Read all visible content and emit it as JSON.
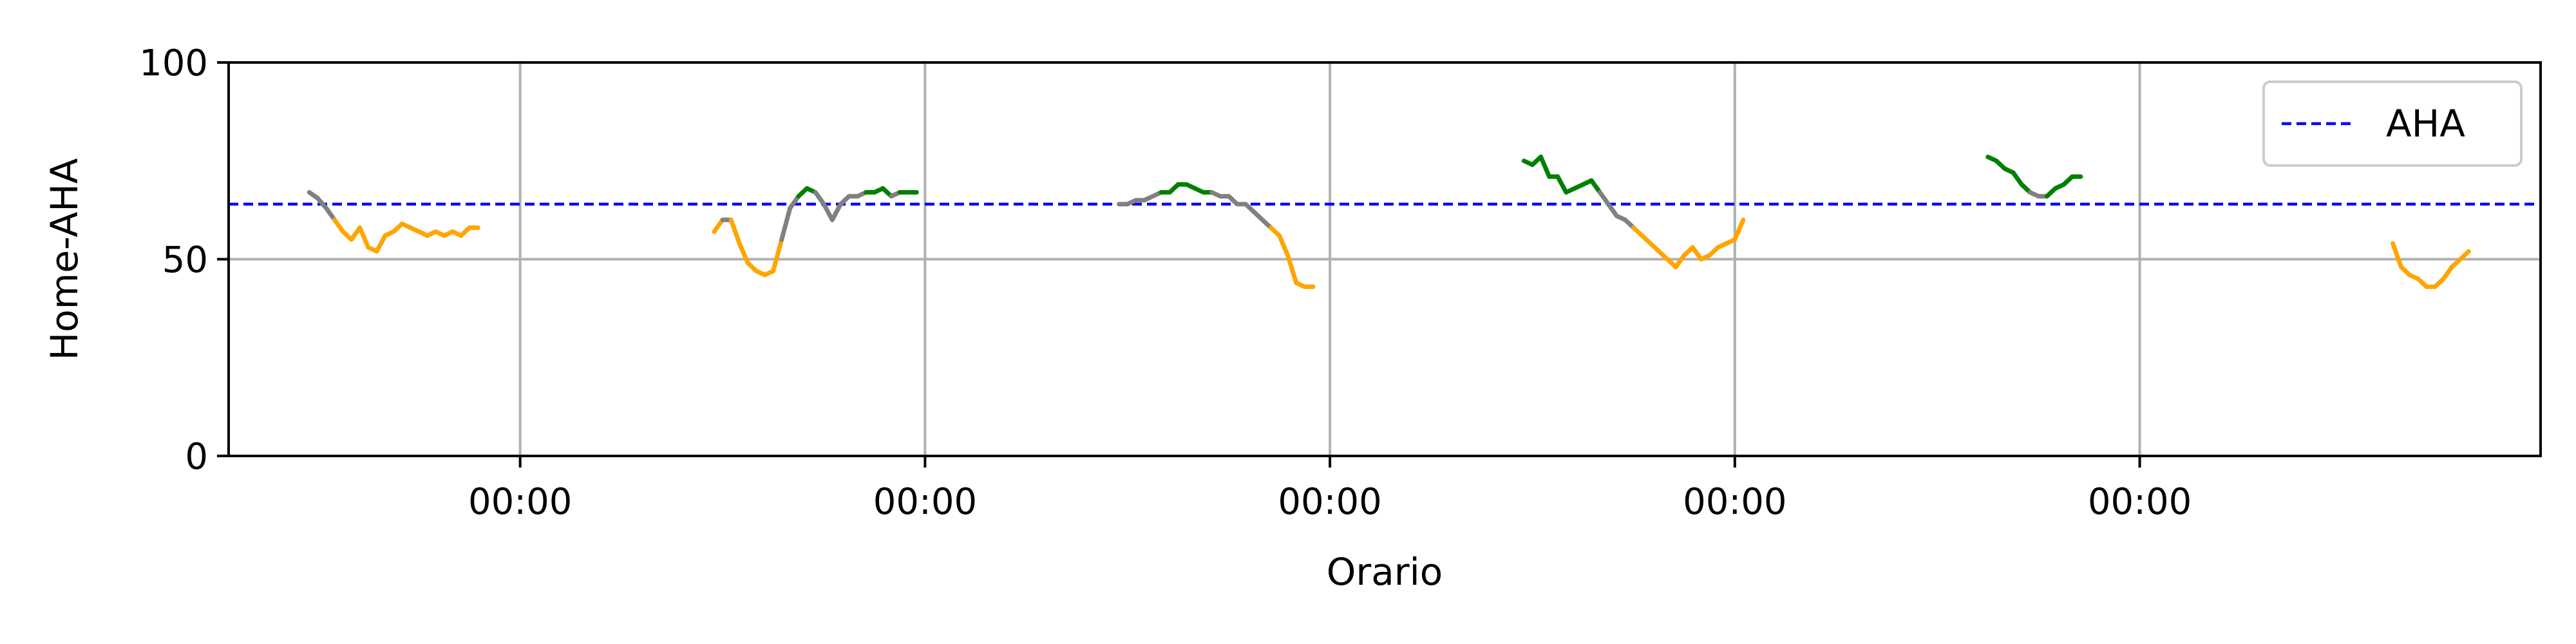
{
  "chart_data": {
    "type": "line",
    "title": "",
    "xlabel": "Orario",
    "ylabel": "Home-AHA",
    "ylim": [
      0,
      100
    ],
    "yticks": [
      0,
      50,
      100
    ],
    "xticks": [
      "00:00",
      "00:00",
      "00:00",
      "00:00",
      "00:00"
    ],
    "xlim_days": [
      -0.72,
      4.99
    ],
    "grid": true,
    "legend": {
      "placement": "top-right",
      "entries": [
        "AHA"
      ]
    },
    "reference_line": {
      "name": "AHA",
      "value": 64,
      "color": "#0000ff",
      "style": "dashed"
    },
    "series_colors": {
      "below": "#ffa500",
      "near": "#808080",
      "above": "#008000"
    },
    "days": [
      {
        "start_hour": 11.5,
        "end_hour": 21.5,
        "points": [
          [
            11.5,
            67
          ],
          [
            12.0,
            65.5
          ],
          [
            12.5,
            63
          ],
          [
            13.0,
            60
          ],
          [
            13.5,
            57
          ],
          [
            14.0,
            55
          ],
          [
            14.5,
            58
          ],
          [
            15.0,
            53
          ],
          [
            15.5,
            52
          ],
          [
            16.0,
            56
          ],
          [
            16.5,
            57
          ],
          [
            17.0,
            59
          ],
          [
            17.5,
            58
          ],
          [
            18.0,
            57
          ],
          [
            18.5,
            56
          ],
          [
            19.0,
            57
          ],
          [
            19.5,
            56
          ],
          [
            20.0,
            57
          ],
          [
            20.5,
            56
          ],
          [
            21.0,
            58
          ],
          [
            21.5,
            58
          ]
        ]
      },
      {
        "start_hour": 11.5,
        "end_hour": 23.5,
        "points": [
          [
            11.5,
            57
          ],
          [
            12.0,
            60
          ],
          [
            12.5,
            60
          ],
          [
            13.0,
            54
          ],
          [
            13.5,
            49
          ],
          [
            14.0,
            47
          ],
          [
            14.5,
            46
          ],
          [
            15.0,
            47
          ],
          [
            15.5,
            55
          ],
          [
            16.0,
            63
          ],
          [
            16.5,
            66
          ],
          [
            17.0,
            68
          ],
          [
            17.5,
            67
          ],
          [
            18.0,
            64
          ],
          [
            18.5,
            60
          ],
          [
            19.0,
            64
          ],
          [
            19.5,
            66
          ],
          [
            20.0,
            66
          ],
          [
            20.5,
            67
          ],
          [
            21.0,
            67
          ],
          [
            21.5,
            68
          ],
          [
            22.0,
            66
          ],
          [
            22.5,
            67
          ],
          [
            23.0,
            67
          ],
          [
            23.5,
            67
          ]
        ]
      },
      {
        "start_hour": 11.5,
        "end_hour": 23.0,
        "points": [
          [
            11.5,
            64
          ],
          [
            12.0,
            64
          ],
          [
            12.5,
            65
          ],
          [
            13.0,
            65
          ],
          [
            13.5,
            66
          ],
          [
            14.0,
            67
          ],
          [
            14.5,
            67
          ],
          [
            15.0,
            69
          ],
          [
            15.5,
            69
          ],
          [
            16.0,
            68
          ],
          [
            16.5,
            67
          ],
          [
            17.0,
            67
          ],
          [
            17.5,
            66
          ],
          [
            18.0,
            66
          ],
          [
            18.5,
            64
          ],
          [
            19.0,
            64
          ],
          [
            19.5,
            62
          ],
          [
            20.0,
            60
          ],
          [
            20.5,
            58
          ],
          [
            21.0,
            56
          ],
          [
            21.5,
            51
          ],
          [
            22.0,
            44
          ],
          [
            22.5,
            43
          ],
          [
            23.0,
            43
          ]
        ]
      },
      {
        "start_hour": 11.5,
        "end_hour": 24.5,
        "points": [
          [
            11.5,
            75
          ],
          [
            12.0,
            74
          ],
          [
            12.5,
            76
          ],
          [
            13.0,
            71
          ],
          [
            13.5,
            71
          ],
          [
            14.0,
            67
          ],
          [
            14.5,
            68
          ],
          [
            15.0,
            69
          ],
          [
            15.5,
            70
          ],
          [
            16.0,
            67
          ],
          [
            16.5,
            64
          ],
          [
            17.0,
            61
          ],
          [
            17.5,
            60
          ],
          [
            18.0,
            58
          ],
          [
            18.5,
            56
          ],
          [
            19.0,
            54
          ],
          [
            19.5,
            52
          ],
          [
            20.0,
            50
          ],
          [
            20.5,
            48
          ],
          [
            21.0,
            51
          ],
          [
            21.5,
            53
          ],
          [
            22.0,
            50
          ],
          [
            22.5,
            51
          ],
          [
            23.0,
            53
          ],
          [
            23.5,
            54
          ],
          [
            24.0,
            55
          ],
          [
            24.5,
            60
          ]
        ]
      },
      {
        "start_hour": 15.0,
        "end_hour": 20.5,
        "points": [
          [
            15.0,
            76
          ],
          [
            15.5,
            75
          ],
          [
            16.0,
            73
          ],
          [
            16.5,
            72
          ],
          [
            17.0,
            69
          ],
          [
            17.5,
            67
          ],
          [
            18.0,
            66
          ],
          [
            18.5,
            66
          ],
          [
            19.0,
            68
          ],
          [
            19.5,
            69
          ],
          [
            20.0,
            71
          ],
          [
            20.5,
            71
          ]
        ]
      },
      {
        "start_hour": 15.0,
        "end_hour": 19.5,
        "points": [
          [
            15.0,
            54
          ],
          [
            15.5,
            48
          ],
          [
            16.0,
            46
          ],
          [
            16.5,
            45
          ],
          [
            17.0,
            43
          ],
          [
            17.5,
            43
          ],
          [
            18.0,
            45
          ],
          [
            18.5,
            48
          ],
          [
            19.0,
            50
          ],
          [
            19.5,
            52
          ]
        ]
      }
    ]
  }
}
